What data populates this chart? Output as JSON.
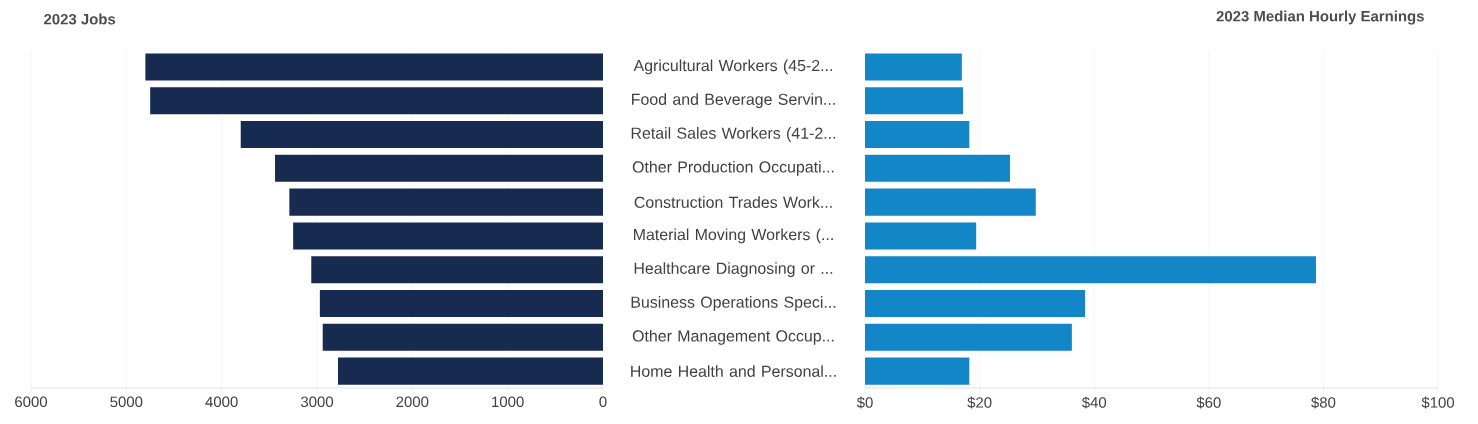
{
  "chart_data": [
    {
      "type": "bar",
      "orientation": "horizontal",
      "title": "2023 Jobs",
      "categories": [
        "Agricultural Workers (45-2...",
        "Food and Beverage Servin...",
        "Retail Sales Workers (41-2...",
        "Other Production Occupati...",
        "Construction Trades Work...",
        "Material Moving Workers (...",
        "Healthcare Diagnosing or ...",
        "Business Operations Speci...",
        "Other Management Occup...",
        "Home Health and Personal..."
      ],
      "values": [
        4800,
        4750,
        3800,
        3440,
        3290,
        3250,
        3060,
        2970,
        2940,
        2780
      ],
      "color": "#172a4f",
      "xlim": [
        6000,
        0
      ],
      "xticks": [
        6000,
        5000,
        4000,
        3000,
        2000,
        1000,
        0
      ],
      "grid": "x"
    },
    {
      "type": "bar",
      "orientation": "horizontal",
      "title": "2023 Median Hourly Earnings",
      "categories": [
        null,
        null,
        null,
        null,
        null,
        null,
        null,
        null,
        null,
        null
      ],
      "values": [
        16.9,
        17.1,
        18.2,
        25.3,
        29.8,
        19.4,
        78.7,
        38.4,
        36.1,
        18.2
      ],
      "color": "#1386c8",
      "xlim": [
        0,
        100
      ],
      "xticks": [
        {
          "value": 0,
          "label": "$0"
        },
        {
          "value": 20,
          "label": "$20"
        },
        {
          "value": 40,
          "label": "$40"
        },
        {
          "value": 60,
          "label": "$60"
        },
        {
          "value": 80,
          "label": "$80"
        },
        {
          "value": 100,
          "label": "$100"
        }
      ],
      "grid": "x",
      "tick_labels": "x"
    }
  ]
}
